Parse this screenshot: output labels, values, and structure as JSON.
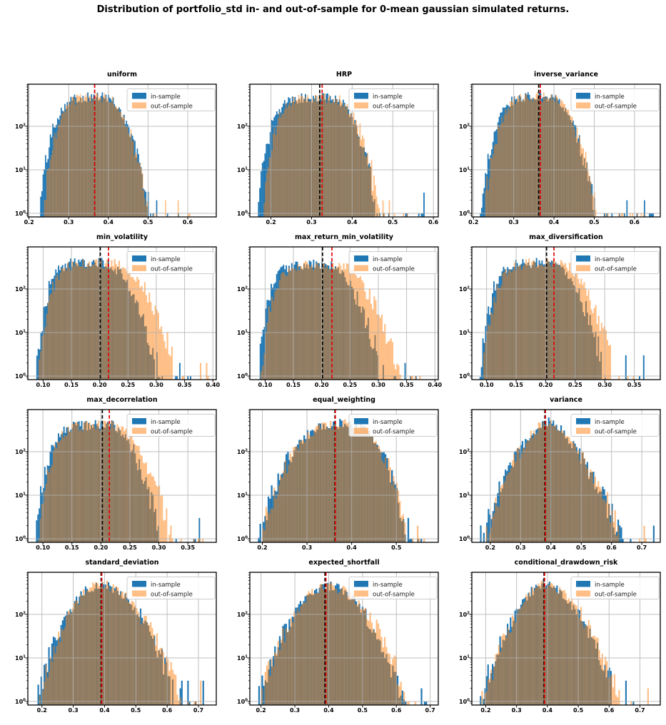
{
  "figure": {
    "title": "Distribution of portfolio_std in- and out-of-sample for 0-mean gaussian simulated returns.",
    "background": "#ffffff"
  },
  "colors": {
    "in_sample": "#1f77b4",
    "out_of_sample": "#ff7f0e",
    "out_of_sample_alpha": 0.5,
    "overlap_visual": "#8f7b61",
    "in_sample_mean_line": "#000000",
    "out_of_sample_mean_line": "#e60000",
    "grid": "#b0b0b0",
    "axes_edge": "#000000",
    "legend_border": "#cccccc"
  },
  "legend": {
    "in_sample": "in-sample",
    "out_of_sample": "out-of-sample"
  },
  "y_axis": {
    "scale": "log",
    "tick_labels": [
      "10^0",
      "10^1",
      "10^2"
    ],
    "tick_exponents": [
      0,
      1,
      2
    ],
    "lim": [
      0.83,
      930
    ]
  },
  "chart_data": [
    {
      "type": "histogram",
      "title": "uniform",
      "x_ticks": [
        0.2,
        0.3,
        0.4,
        0.5,
        0.6
      ],
      "x_tick_labels": [
        "0.2",
        "0.3",
        "0.4",
        "0.5",
        "0.6"
      ],
      "xlim": [
        0.197,
        0.672
      ],
      "vline_black_in_sample_mean": 0.3655,
      "vline_red_out_of_sample_mean": 0.3655,
      "series": [
        {
          "name": "in-sample",
          "min": 0.225,
          "mode": 0.385,
          "dense_max": 0.505,
          "outlier_max": 0.658,
          "peak_count": 470,
          "left_p": 5.0,
          "right_p": 2.2
        },
        {
          "name": "out-of-sample",
          "min": 0.235,
          "mode": 0.386,
          "dense_max": 0.502,
          "outlier_max": 0.605,
          "peak_count": 455,
          "left_p": 5.0,
          "right_p": 2.2
        }
      ],
      "seed": 101
    },
    {
      "type": "histogram",
      "title": "HRP",
      "x_ticks": [
        0.2,
        0.3,
        0.4,
        0.5,
        0.6
      ],
      "x_tick_labels": [
        "0.2",
        "0.3",
        "0.4",
        "0.5",
        "0.6"
      ],
      "xlim": [
        0.148,
        0.612
      ],
      "vline_black_in_sample_mean": 0.32,
      "vline_red_out_of_sample_mean": 0.326,
      "series": [
        {
          "name": "in-sample",
          "min": 0.168,
          "mode": 0.347,
          "dense_max": 0.463,
          "outlier_max": 0.592,
          "peak_count": 440,
          "left_p": 6.5,
          "right_p": 2.3
        },
        {
          "name": "out-of-sample",
          "min": 0.179,
          "mode": 0.35,
          "dense_max": 0.468,
          "outlier_max": 0.568,
          "peak_count": 440,
          "left_p": 6.5,
          "right_p": 2.3
        }
      ],
      "seed": 102
    },
    {
      "type": "histogram",
      "title": "inverse_variance",
      "x_ticks": [
        0.2,
        0.3,
        0.4,
        0.5,
        0.6
      ],
      "x_tick_labels": [
        "0.2",
        "0.3",
        "0.4",
        "0.5",
        "0.6"
      ],
      "xlim": [
        0.196,
        0.664
      ],
      "vline_black_in_sample_mean": 0.362,
      "vline_red_out_of_sample_mean": 0.366,
      "series": [
        {
          "name": "in-sample",
          "min": 0.216,
          "mode": 0.386,
          "dense_max": 0.502,
          "outlier_max": 0.648,
          "peak_count": 490,
          "left_p": 5.0,
          "right_p": 2.2
        },
        {
          "name": "out-of-sample",
          "min": 0.226,
          "mode": 0.387,
          "dense_max": 0.508,
          "outlier_max": 0.625,
          "peak_count": 475,
          "left_p": 5.0,
          "right_p": 2.2
        }
      ],
      "seed": 103
    },
    {
      "type": "histogram",
      "title": "min_volatility",
      "x_ticks": [
        0.1,
        0.15,
        0.2,
        0.25,
        0.3,
        0.35,
        0.4
      ],
      "x_tick_labels": [
        "0.10",
        "0.15",
        "0.20",
        "0.25",
        "0.30",
        "0.35",
        "0.40"
      ],
      "xlim": [
        0.073,
        0.406
      ],
      "vline_black_in_sample_mean": 0.201,
      "vline_red_out_of_sample_mean": 0.2155,
      "series": [
        {
          "name": "in-sample",
          "min": 0.088,
          "mode": 0.21,
          "dense_max": 0.307,
          "outlier_max": 0.366,
          "peak_count": 400,
          "left_p": 7.0,
          "right_p": 1.8
        },
        {
          "name": "out-of-sample",
          "min": 0.092,
          "mode": 0.227,
          "dense_max": 0.337,
          "outlier_max": 0.392,
          "peak_count": 385,
          "left_p": 7.0,
          "right_p": 1.9
        }
      ],
      "seed": 104
    },
    {
      "type": "histogram",
      "title": "max_return_min_volatility",
      "x_ticks": [
        0.1,
        0.15,
        0.2,
        0.25,
        0.3,
        0.35,
        0.4
      ],
      "x_tick_labels": [
        "0.10",
        "0.15",
        "0.20",
        "0.25",
        "0.30",
        "0.35",
        "0.40"
      ],
      "xlim": [
        0.073,
        0.406
      ],
      "vline_black_in_sample_mean": 0.2015,
      "vline_red_out_of_sample_mean": 0.218,
      "series": [
        {
          "name": "in-sample",
          "min": 0.088,
          "mode": 0.212,
          "dense_max": 0.31,
          "outlier_max": 0.368,
          "peak_count": 360,
          "left_p": 7.0,
          "right_p": 1.8
        },
        {
          "name": "out-of-sample",
          "min": 0.092,
          "mode": 0.229,
          "dense_max": 0.34,
          "outlier_max": 0.392,
          "peak_count": 350,
          "left_p": 7.0,
          "right_p": 1.9
        }
      ],
      "seed": 105
    },
    {
      "type": "histogram",
      "title": "max_diversification",
      "x_ticks": [
        0.1,
        0.15,
        0.2,
        0.25,
        0.3,
        0.35
      ],
      "x_tick_labels": [
        "0.10",
        "0.15",
        "0.20",
        "0.25",
        "0.30",
        "0.35"
      ],
      "xlim": [
        0.075,
        0.394
      ],
      "vline_black_in_sample_mean": 0.2015,
      "vline_red_out_of_sample_mean": 0.214,
      "series": [
        {
          "name": "in-sample",
          "min": 0.088,
          "mode": 0.214,
          "dense_max": 0.302,
          "outlier_max": 0.372,
          "peak_count": 400,
          "left_p": 6.5,
          "right_p": 1.8
        },
        {
          "name": "out-of-sample",
          "min": 0.092,
          "mode": 0.224,
          "dense_max": 0.318,
          "outlier_max": 0.348,
          "peak_count": 390,
          "left_p": 6.5,
          "right_p": 1.9
        }
      ],
      "seed": 106
    },
    {
      "type": "histogram",
      "title": "max_decorrelation",
      "x_ticks": [
        0.1,
        0.15,
        0.2,
        0.25,
        0.3,
        0.35
      ],
      "x_tick_labels": [
        "0.10",
        "0.15",
        "0.20",
        "0.25",
        "0.30",
        "0.35"
      ],
      "xlim": [
        0.074,
        0.399
      ],
      "vline_black_in_sample_mean": 0.2025,
      "vline_red_out_of_sample_mean": 0.2145,
      "series": [
        {
          "name": "in-sample",
          "min": 0.088,
          "mode": 0.215,
          "dense_max": 0.305,
          "outlier_max": 0.373,
          "peak_count": 410,
          "left_p": 6.5,
          "right_p": 1.8
        },
        {
          "name": "out-of-sample",
          "min": 0.092,
          "mode": 0.223,
          "dense_max": 0.322,
          "outlier_max": 0.386,
          "peak_count": 400,
          "left_p": 6.5,
          "right_p": 1.9
        }
      ],
      "seed": 107
    },
    {
      "type": "histogram",
      "title": "equal_weighting",
      "x_ticks": [
        0.2,
        0.3,
        0.4,
        0.5
      ],
      "x_tick_labels": [
        "0.2",
        "0.3",
        "0.4",
        "0.5"
      ],
      "xlim": [
        0.172,
        0.594
      ],
      "vline_black_in_sample_mean": 0.3625,
      "vline_red_out_of_sample_mean": 0.3635,
      "series": [
        {
          "name": "in-sample",
          "min": 0.19,
          "mode": 0.376,
          "dense_max": 0.525,
          "outlier_max": 0.576,
          "peak_count": 430,
          "left_p": 2.6,
          "right_p": 2.8
        },
        {
          "name": "out-of-sample",
          "min": 0.196,
          "mode": 0.377,
          "dense_max": 0.528,
          "outlier_max": 0.57,
          "peak_count": 425,
          "left_p": 2.6,
          "right_p": 2.8
        }
      ],
      "seed": 108
    },
    {
      "type": "histogram",
      "title": "variance",
      "x_ticks": [
        0.2,
        0.3,
        0.4,
        0.5,
        0.6,
        0.7
      ],
      "x_tick_labels": [
        "0.2",
        "0.3",
        "0.4",
        "0.5",
        "0.6",
        "0.7"
      ],
      "xlim": [
        0.139,
        0.761
      ],
      "vline_black_in_sample_mean": 0.38,
      "vline_red_out_of_sample_mean": 0.382,
      "series": [
        {
          "name": "in-sample",
          "min": 0.166,
          "mode": 0.39,
          "dense_max": 0.635,
          "outlier_max": 0.737,
          "peak_count": 500,
          "left_p": 1.6,
          "right_p": 1.5
        },
        {
          "name": "out-of-sample",
          "min": 0.175,
          "mode": 0.392,
          "dense_max": 0.64,
          "outlier_max": 0.73,
          "peak_count": 490,
          "left_p": 1.6,
          "right_p": 1.5
        }
      ],
      "seed": 109
    },
    {
      "type": "histogram",
      "title": "standard_deviation",
      "x_ticks": [
        0.2,
        0.3,
        0.4,
        0.5,
        0.6,
        0.7
      ],
      "x_tick_labels": [
        "0.2",
        "0.3",
        "0.4",
        "0.5",
        "0.6",
        "0.7"
      ],
      "xlim": [
        0.155,
        0.757
      ],
      "vline_black_in_sample_mean": 0.389,
      "vline_red_out_of_sample_mean": 0.391,
      "series": [
        {
          "name": "in-sample",
          "min": 0.181,
          "mode": 0.394,
          "dense_max": 0.63,
          "outlier_max": 0.733,
          "peak_count": 480,
          "left_p": 2.1,
          "right_p": 1.9
        },
        {
          "name": "out-of-sample",
          "min": 0.186,
          "mode": 0.396,
          "dense_max": 0.645,
          "outlier_max": 0.725,
          "peak_count": 470,
          "left_p": 2.1,
          "right_p": 1.9
        }
      ],
      "seed": 110
    },
    {
      "type": "histogram",
      "title": "expected_shortfall",
      "x_ticks": [
        0.2,
        0.3,
        0.4,
        0.5,
        0.6,
        0.7
      ],
      "x_tick_labels": [
        "0.2",
        "0.3",
        "0.4",
        "0.5",
        "0.6",
        "0.7"
      ],
      "xlim": [
        0.167,
        0.724
      ],
      "vline_black_in_sample_mean": 0.389,
      "vline_red_out_of_sample_mean": 0.392,
      "series": [
        {
          "name": "in-sample",
          "min": 0.192,
          "mode": 0.395,
          "dense_max": 0.625,
          "outlier_max": 0.7,
          "peak_count": 440,
          "left_p": 2.0,
          "right_p": 2.0
        },
        {
          "name": "out-of-sample",
          "min": 0.196,
          "mode": 0.397,
          "dense_max": 0.635,
          "outlier_max": 0.698,
          "peak_count": 435,
          "left_p": 2.0,
          "right_p": 2.0
        }
      ],
      "seed": 111
    },
    {
      "type": "histogram",
      "title": "conditional_drawdown_risk",
      "x_ticks": [
        0.2,
        0.3,
        0.4,
        0.5,
        0.6,
        0.7
      ],
      "x_tick_labels": [
        "0.2",
        "0.3",
        "0.4",
        "0.5",
        "0.6",
        "0.7"
      ],
      "xlim": [
        0.155,
        0.766
      ],
      "vline_black_in_sample_mean": 0.389,
      "vline_red_out_of_sample_mean": 0.391,
      "series": [
        {
          "name": "in-sample",
          "min": 0.181,
          "mode": 0.396,
          "dense_max": 0.628,
          "outlier_max": 0.74,
          "peak_count": 500,
          "left_p": 1.8,
          "right_p": 1.7
        },
        {
          "name": "out-of-sample",
          "min": 0.186,
          "mode": 0.398,
          "dense_max": 0.64,
          "outlier_max": 0.735,
          "peak_count": 490,
          "left_p": 1.8,
          "right_p": 1.7
        }
      ],
      "seed": 112
    }
  ]
}
